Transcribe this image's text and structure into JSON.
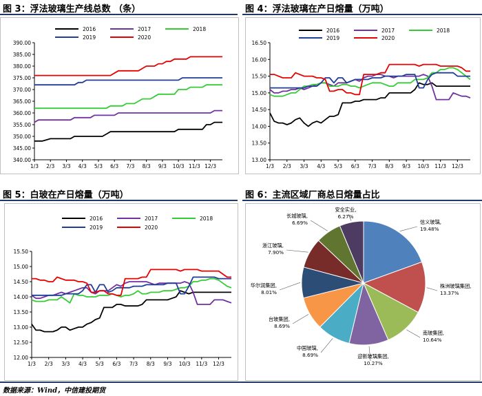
{
  "colors": {
    "2016": "#000000",
    "2017": "#7030a0",
    "2018": "#33cc33",
    "2019": "#1f3c99",
    "2020": "#e60000"
  },
  "legend": [
    "2016",
    "2017",
    "2018",
    "2019",
    "2020"
  ],
  "months": [
    "1/3",
    "2/3",
    "3/3",
    "4/3",
    "5/3",
    "6/3",
    "7/3",
    "8/3",
    "9/3",
    "10/3",
    "11/3",
    "12/3"
  ],
  "fig3": {
    "title": "图 3：浮法玻璃生产线总数 （条）",
    "chart_data": {
      "type": "line",
      "title": "图 3：浮法玻璃生产线总数 （条）",
      "yticks": [
        "390.00",
        "385.00",
        "380.00",
        "375.00",
        "370.00",
        "365.00",
        "360.00",
        "355.00",
        "350.00",
        "345.00",
        "340.00"
      ],
      "ylim": [
        340,
        390
      ],
      "x": [
        0,
        0.25,
        0.5,
        0.75,
        1,
        1.25,
        1.5,
        1.75,
        2,
        2.25,
        2.5,
        2.75,
        3,
        3.25,
        3.5,
        3.75,
        4,
        4.25,
        4.5,
        4.75,
        5,
        5.25,
        5.5,
        5.75,
        6,
        6.25,
        6.5,
        6.75,
        7,
        7.25,
        7.5,
        7.75,
        8,
        8.25,
        8.5,
        8.75,
        9,
        9.25,
        9.5,
        9.75,
        10,
        10.25,
        10.5,
        10.75,
        11,
        11.25,
        11.5,
        11.75
      ],
      "series": [
        {
          "name": "2016",
          "values": [
            348,
            348,
            348,
            348.5,
            349,
            349,
            349,
            349,
            349,
            349,
            350,
            350,
            350,
            350,
            350,
            350,
            350,
            350,
            351,
            352,
            352,
            352,
            352,
            352,
            352,
            352,
            352,
            352,
            352,
            352,
            352,
            352,
            352,
            352,
            352,
            352,
            353,
            353,
            353,
            353,
            353,
            353,
            353,
            355,
            355,
            356,
            356,
            356
          ]
        },
        {
          "name": "2017",
          "values": [
            356,
            357,
            357,
            357,
            357,
            357,
            357,
            357,
            357,
            357,
            358,
            358,
            358,
            358,
            358,
            359,
            359,
            359,
            359,
            359,
            359,
            360,
            360,
            360,
            360,
            360,
            360,
            360,
            360,
            360,
            360,
            360,
            360,
            360,
            360,
            360,
            360,
            360,
            360,
            360,
            360,
            360,
            360,
            360,
            360,
            361,
            361,
            361
          ]
        },
        {
          "name": "2018",
          "values": [
            362,
            362,
            362,
            362,
            362,
            362,
            362,
            362,
            362,
            362,
            362,
            362,
            362,
            362,
            362,
            362,
            362,
            362,
            362,
            363,
            363,
            363,
            363,
            364,
            364,
            364,
            365,
            366,
            366,
            366,
            367,
            368,
            368,
            368,
            368,
            368,
            370,
            370,
            370,
            371,
            371,
            371,
            371,
            372,
            372,
            372,
            372,
            372
          ]
        },
        {
          "name": "2019",
          "values": [
            372,
            372,
            372,
            372,
            372,
            372,
            372,
            372,
            372,
            372,
            372,
            373,
            373,
            374,
            374,
            374,
            374,
            374,
            374,
            374,
            374,
            374,
            374,
            374,
            374,
            374,
            374,
            374,
            374,
            374,
            374,
            374,
            374,
            374,
            374,
            374,
            374,
            375,
            375,
            375,
            375,
            375,
            375,
            375,
            375,
            375,
            375,
            375
          ]
        },
        {
          "name": "2020",
          "values": [
            376,
            376,
            376,
            376,
            376,
            376,
            376,
            376,
            376,
            376,
            376,
            376,
            376,
            376,
            376,
            376,
            376,
            376,
            376,
            376,
            377,
            378,
            378,
            378,
            378,
            378,
            378,
            379,
            380,
            380,
            380,
            381,
            381,
            382,
            382,
            383,
            383,
            383,
            383,
            384,
            384,
            384,
            384,
            384,
            384,
            384,
            384,
            384
          ]
        }
      ]
    }
  },
  "fig4": {
    "title": "图 4：浮法玻璃在产日熔量（万吨）",
    "chart_data": {
      "type": "line",
      "title": "图 4：浮法玻璃在产日熔量（万吨）",
      "yticks": [
        "16.50",
        "16.00",
        "15.50",
        "15.00",
        "14.50",
        "14.00",
        "13.50",
        "13.00"
      ],
      "ylim": [
        13,
        16.5
      ],
      "x": [
        0,
        0.25,
        0.5,
        0.75,
        1,
        1.25,
        1.5,
        1.75,
        2,
        2.25,
        2.5,
        2.75,
        3,
        3.25,
        3.5,
        3.75,
        4,
        4.25,
        4.5,
        4.75,
        5,
        5.25,
        5.5,
        5.75,
        6,
        6.25,
        6.5,
        6.75,
        7,
        7.25,
        7.5,
        7.75,
        8,
        8.25,
        8.5,
        8.75,
        9,
        9.25,
        9.5,
        9.75,
        10,
        10.25,
        10.5,
        10.75,
        11,
        11.25,
        11.5,
        11.75
      ],
      "series": [
        {
          "name": "2016",
          "values": [
            14.4,
            14.15,
            14.1,
            14.1,
            14.05,
            14.1,
            14.2,
            14.25,
            14.1,
            14.0,
            14.1,
            14.15,
            14.1,
            14.2,
            14.3,
            14.3,
            14.35,
            14.7,
            14.7,
            14.7,
            14.75,
            14.75,
            14.8,
            14.8,
            14.8,
            14.8,
            14.85,
            14.85,
            15.0,
            15.0,
            15.0,
            15.0,
            15.0,
            15.0,
            15.1,
            15.3,
            15.25,
            15.25,
            15.3,
            15.2,
            15.2,
            15.2,
            15.2,
            15.2,
            15.2,
            15.2,
            15.2,
            15.2
          ]
        },
        {
          "name": "2017",
          "values": [
            15.1,
            15.0,
            15.0,
            15.05,
            15.05,
            15.1,
            15.1,
            15.15,
            15.1,
            15.15,
            15.2,
            15.25,
            15.3,
            15.3,
            15.25,
            15.2,
            15.3,
            15.3,
            15.3,
            15.35,
            15.4,
            15.35,
            15.45,
            15.5,
            15.5,
            15.55,
            15.55,
            15.5,
            15.5,
            15.45,
            15.5,
            15.5,
            15.5,
            15.5,
            15.5,
            15.5,
            15.55,
            15.5,
            15.2,
            14.8,
            14.8,
            14.8,
            14.8,
            15.0,
            14.95,
            14.9,
            14.9,
            14.85
          ]
        },
        {
          "name": "2018",
          "values": [
            14.95,
            14.9,
            14.9,
            14.9,
            14.95,
            15.0,
            15.0,
            15.1,
            15.2,
            15.2,
            15.25,
            15.25,
            15.3,
            15.3,
            15.2,
            15.2,
            15.2,
            15.25,
            15.25,
            15.2,
            15.2,
            15.15,
            15.2,
            15.25,
            15.3,
            15.3,
            15.3,
            15.25,
            15.2,
            15.2,
            15.3,
            15.3,
            15.3,
            15.3,
            15.4,
            15.4,
            15.4,
            15.45,
            15.6,
            15.6,
            15.7,
            15.7,
            15.75,
            15.75,
            15.7,
            15.6,
            15.5,
            15.4
          ]
        },
        {
          "name": "2019",
          "values": [
            15.15,
            15.15,
            15.15,
            15.15,
            15.15,
            15.15,
            15.15,
            15.15,
            15.15,
            15.2,
            15.2,
            15.2,
            15.3,
            15.45,
            15.45,
            15.3,
            15.45,
            15.45,
            15.3,
            15.35,
            15.4,
            15.4,
            15.4,
            15.4,
            15.45,
            15.45,
            15.45,
            15.5,
            15.5,
            15.5,
            15.5,
            15.5,
            15.55,
            15.55,
            15.55,
            15.15,
            15.15,
            15.4,
            15.55,
            15.6,
            15.6,
            15.6,
            15.6,
            15.6,
            15.5,
            15.5,
            15.5,
            15.5
          ]
        },
        {
          "name": "2020",
          "values": [
            15.55,
            15.55,
            15.5,
            15.45,
            15.45,
            15.45,
            15.6,
            15.55,
            15.5,
            15.5,
            15.5,
            15.45,
            15.45,
            15.4,
            15.05,
            15.05,
            15.1,
            15.1,
            15.0,
            15.0,
            14.95,
            14.95,
            15.55,
            15.55,
            15.55,
            15.55,
            15.6,
            15.6,
            15.85,
            15.85,
            15.85,
            15.85,
            15.85,
            15.85,
            15.85,
            15.8,
            15.85,
            15.85,
            15.85,
            15.85,
            15.8,
            15.8,
            15.8,
            15.8,
            15.8,
            15.75,
            15.65,
            15.65
          ]
        }
      ]
    }
  },
  "fig5": {
    "title": "图 5：白玻在产日熔量（万吨）",
    "chart_data": {
      "type": "line",
      "title": "图 5：白玻在产日熔量（万吨）",
      "yticks": [
        "15.50",
        "15.00",
        "14.50",
        "14.00",
        "13.50",
        "13.00",
        "12.50",
        "12.00"
      ],
      "ylim": [
        12,
        15.5
      ],
      "x": [
        0,
        0.25,
        0.5,
        0.75,
        1,
        1.25,
        1.5,
        1.75,
        2,
        2.25,
        2.5,
        2.75,
        3,
        3.25,
        3.5,
        3.75,
        4,
        4.25,
        4.5,
        4.75,
        5,
        5.25,
        5.5,
        5.75,
        6,
        6.25,
        6.5,
        6.75,
        7,
        7.25,
        7.5,
        7.75,
        8,
        8.25,
        8.5,
        8.75,
        9,
        9.25,
        9.5,
        9.75,
        10,
        10.25,
        10.5,
        10.75,
        11,
        11.25,
        11.5,
        11.75
      ],
      "series": [
        {
          "name": "2016",
          "values": [
            13.1,
            12.9,
            12.9,
            12.85,
            12.85,
            12.85,
            12.9,
            13.0,
            13.0,
            12.9,
            12.95,
            13.0,
            13.0,
            13.1,
            13.15,
            13.25,
            13.3,
            13.65,
            13.65,
            13.65,
            13.75,
            13.75,
            13.7,
            13.7,
            13.7,
            13.7,
            13.75,
            13.9,
            13.9,
            13.9,
            13.9,
            13.9,
            13.9,
            13.95,
            14.0,
            14.2,
            14.15,
            14.1,
            14.15,
            14.15,
            14.15,
            14.15,
            14.15,
            14.15,
            14.15,
            14.15,
            14.15,
            14.15
          ]
        },
        {
          "name": "2017",
          "values": [
            14.05,
            13.95,
            13.95,
            14.0,
            14.05,
            14.05,
            14.1,
            14.15,
            14.1,
            14.15,
            14.2,
            14.25,
            14.3,
            14.3,
            14.15,
            14.1,
            14.2,
            14.2,
            14.2,
            14.3,
            14.4,
            14.35,
            14.45,
            14.5,
            14.5,
            14.5,
            14.5,
            14.5,
            14.45,
            14.4,
            14.45,
            14.45,
            14.45,
            14.45,
            14.45,
            14.45,
            14.5,
            14.45,
            14.15,
            13.75,
            13.75,
            13.75,
            13.75,
            13.9,
            13.9,
            13.9,
            13.85,
            13.8
          ]
        },
        {
          "name": "2018",
          "values": [
            13.9,
            13.85,
            13.85,
            13.85,
            13.9,
            13.9,
            13.9,
            14.0,
            13.9,
            13.8,
            14.1,
            14.05,
            14.05,
            14.0,
            14.0,
            14.0,
            14.05,
            14.05,
            14.05,
            14.1,
            14.05,
            14.0,
            14.05,
            14.05,
            14.1,
            14.2,
            14.1,
            14.1,
            14.15,
            14.15,
            14.15,
            14.2,
            14.2,
            14.2,
            14.25,
            14.3,
            14.3,
            14.35,
            14.5,
            14.5,
            14.55,
            14.55,
            14.6,
            14.6,
            14.55,
            14.45,
            14.35,
            14.3
          ]
        },
        {
          "name": "2019",
          "values": [
            14.05,
            14.05,
            14.05,
            14.05,
            14.05,
            14.05,
            14.05,
            14.05,
            14.1,
            14.1,
            14.1,
            14.1,
            14.2,
            14.4,
            14.4,
            14.15,
            14.4,
            14.4,
            14.15,
            14.2,
            14.3,
            14.3,
            14.3,
            14.3,
            14.35,
            14.35,
            14.35,
            14.4,
            14.4,
            14.4,
            14.4,
            14.4,
            14.45,
            14.45,
            14.45,
            14.1,
            14.1,
            14.35,
            14.65,
            14.65,
            14.65,
            14.65,
            14.65,
            14.65,
            14.6,
            14.6,
            14.6,
            14.6
          ]
        },
        {
          "name": "2020",
          "values": [
            14.6,
            14.6,
            14.55,
            14.55,
            14.5,
            14.5,
            14.65,
            14.6,
            14.55,
            14.55,
            14.55,
            14.5,
            14.5,
            14.45,
            14.15,
            14.15,
            14.2,
            14.2,
            14.1,
            14.1,
            14.05,
            14.05,
            14.6,
            14.6,
            14.6,
            14.6,
            14.65,
            14.65,
            14.9,
            14.9,
            14.9,
            14.9,
            14.9,
            14.9,
            14.9,
            14.85,
            14.9,
            14.9,
            14.9,
            14.9,
            14.85,
            14.85,
            14.85,
            14.85,
            14.85,
            14.75,
            14.65,
            14.65
          ]
        }
      ]
    }
  },
  "fig6": {
    "title": "图 6：主流区域厂商总日熔量占比",
    "chart_data": {
      "type": "pie",
      "title": "图 6：主流区域厂商总日熔量占比",
      "slices": [
        {
          "name": "信义玻璃,",
          "pct": "19.48%",
          "value": 19.48,
          "color": "#4f81bd"
        },
        {
          "name": "株洲玻璃集团,",
          "pct": "13.37%",
          "value": 13.37,
          "color": "#c0504d"
        },
        {
          "name": "南玻集团,",
          "pct": "10.64%",
          "value": 10.64,
          "color": "#9bbb59"
        },
        {
          "name": "迎新玻璃集团,",
          "pct": "10.27%",
          "value": 10.27,
          "color": "#8064a2"
        },
        {
          "name": "中国玻璃,",
          "pct": "8.69%",
          "value": 8.69,
          "color": "#4bacc6"
        },
        {
          "name": "台玻集团,",
          "pct": "8.69%",
          "value": 8.69,
          "color": "#f79646"
        },
        {
          "name": "华尔润集团,",
          "pct": "8.01%",
          "value": 8.01,
          "color": "#2c4d75"
        },
        {
          "name": "浙江玻璃,",
          "pct": "7.90%",
          "value": 7.9,
          "color": "#772c2a"
        },
        {
          "name": "长城玻璃,",
          "pct": "6.69%",
          "value": 6.69,
          "color": "#5f7530"
        },
        {
          "name": "安全实业,",
          "pct": "6.27%",
          "value": 6.27,
          "color": "#4d3b62"
        }
      ]
    }
  },
  "source": "数据来源：Wind，中信建投期货"
}
